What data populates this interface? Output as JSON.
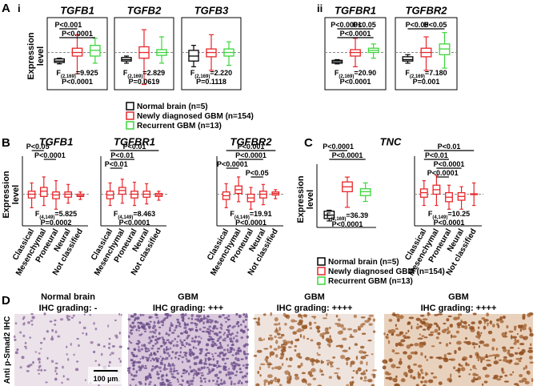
{
  "panels": {
    "A": "A",
    "i": "i",
    "ii": "ii",
    "B": "B",
    "C": "C",
    "D": "D"
  },
  "legends": [
    {
      "names": [
        "Normal brain (n=5)",
        "Newly diagnosed GBM (n=154)",
        "Recurrent GBM (n=13)"
      ],
      "colors": [
        "#000000",
        "#e8262a",
        "#3cd63c"
      ]
    },
    {
      "names": [
        "Normal brain (n=5)",
        "Newly diagnosed GBM (n=154)",
        "Recurrent GBM (n=13)"
      ],
      "colors": [
        "#000000",
        "#e8262a",
        "#3cd63c"
      ]
    }
  ],
  "chart_data": [
    {
      "type": "box",
      "title": "TGFB1",
      "ylabel": "Expression level",
      "ylim": [
        -5,
        4
      ],
      "zero_line": true,
      "legend": 0,
      "boxes": [
        {
          "min": -1.6,
          "q1": -1.4,
          "median": -1.2,
          "q3": -0.9,
          "max": -0.8
        },
        {
          "min": -3,
          "q1": -0.5,
          "median": 0,
          "q3": 0.6,
          "max": 2.5
        },
        {
          "min": -1.5,
          "q1": -0.5,
          "median": 0.3,
          "q3": 1.0,
          "max": 2.0
        }
      ],
      "comparisons": [
        {
          "label": "P<0.001",
          "pair": [
            0,
            1
          ],
          "level": 0
        },
        {
          "label": "P<0.0001",
          "pair": [
            0,
            2
          ],
          "level": 1
        }
      ],
      "stat": {
        "name": "F",
        "df": "(2,169)",
        "value": "=9.925",
        "p": "P<0.0001"
      }
    },
    {
      "type": "box",
      "title": "TGFB2",
      "ylim": [
        -5,
        4
      ],
      "zero_line": true,
      "legend": 0,
      "boxes": [
        {
          "min": -1.5,
          "q1": -1.2,
          "median": -1,
          "q3": -0.7,
          "max": -0.5
        },
        {
          "min": -4.5,
          "q1": -0.8,
          "median": 0,
          "q3": 0.8,
          "max": 3.2
        },
        {
          "min": -1.5,
          "q1": -0.4,
          "median": 0,
          "q3": 0.4,
          "max": 2.2
        }
      ],
      "comparisons": [],
      "stat": {
        "name": "F",
        "df": "(2,169)",
        "value": "=2.829",
        "p": "P=0.0619"
      }
    },
    {
      "type": "box",
      "title": "TGFB3",
      "ylim": [
        -5,
        4
      ],
      "zero_line": true,
      "legend": 0,
      "boxes": [
        {
          "min": -2,
          "q1": -1.2,
          "median": -0.5,
          "q3": 0.3,
          "max": 1.0
        },
        {
          "min": -2.5,
          "q1": -0.6,
          "median": 0,
          "q3": 0.5,
          "max": 2.5
        },
        {
          "min": -1.8,
          "q1": -0.5,
          "median": 0,
          "q3": 0.5,
          "max": 1.5
        }
      ],
      "comparisons": [],
      "stat": {
        "name": "F",
        "df": "(2,169)",
        "value": "=2.220",
        "p": "P=0.1118"
      }
    },
    {
      "type": "box",
      "title": "TGFBR1",
      "ylim": [
        -5,
        4
      ],
      "zero_line": true,
      "legend": 0,
      "boxes": [
        {
          "min": -1.6,
          "q1": -1.5,
          "median": -1.3,
          "q3": -1.1,
          "max": -1.0
        },
        {
          "min": -2,
          "q1": -0.5,
          "median": 0,
          "q3": 0.4,
          "max": 2
        },
        {
          "min": -0.8,
          "q1": 0,
          "median": 0.3,
          "q3": 0.6,
          "max": 1.2
        }
      ],
      "comparisons": [
        {
          "label": "P<0.0001",
          "pair": [
            0,
            1
          ],
          "level": 0
        },
        {
          "label": "P<0.05",
          "pair": [
            1,
            2
          ],
          "level": 0
        },
        {
          "label": "P<0.0001",
          "pair": [
            0,
            2
          ],
          "level": 1
        }
      ],
      "stat": {
        "name": "F",
        "df": "(2,169)",
        "value": "=20.90",
        "p": "P<0.0001"
      }
    },
    {
      "type": "box",
      "title": "TGFBR2",
      "ylim": [
        -5,
        4
      ],
      "zero_line": true,
      "legend": 0,
      "boxes": [
        {
          "min": -1.5,
          "q1": -1.2,
          "median": -1,
          "q3": -0.6,
          "max": -0.3
        },
        {
          "min": -2.5,
          "q1": -0.6,
          "median": 0,
          "q3": 0.6,
          "max": 2.2
        },
        {
          "min": -2.2,
          "q1": -0.3,
          "median": 0.5,
          "q3": 1.2,
          "max": 2.8
        }
      ],
      "comparisons": [
        {
          "label": "P<0.05",
          "pair": [
            0,
            1
          ],
          "level": 0
        },
        {
          "label": "P<0.05",
          "pair": [
            1,
            2
          ],
          "level": 0
        }
      ],
      "stat": {
        "name": "F",
        "df": "(2,169)",
        "value": "=7.180",
        "p": "P=0.001"
      }
    },
    {
      "type": "box",
      "title": "TGFB1",
      "ylabel": "Expression level",
      "ylim": [
        -4,
        4
      ],
      "zero_line": true,
      "color": "#e8262a",
      "categories": [
        "Classical",
        "Mesenchymal",
        "Proneural",
        "Neural",
        "Not classified"
      ],
      "boxes": [
        {
          "min": -1.8,
          "q1": -0.5,
          "median": 0,
          "q3": 0.4,
          "max": 1.5
        },
        {
          "min": -1.5,
          "q1": -0.3,
          "median": 0.4,
          "q3": 0.9,
          "max": 2.3
        },
        {
          "min": -2,
          "q1": -0.6,
          "median": -0.1,
          "q3": 0.3,
          "max": 1.8
        },
        {
          "min": -1.2,
          "q1": -0.4,
          "median": 0,
          "q3": 0.3,
          "max": 1.3
        },
        {
          "min": -0.7,
          "q1": -0.3,
          "median": -0.2,
          "q3": 0,
          "max": 0.3
        }
      ],
      "comparisons": [
        {
          "label": "P<0.05",
          "pair": [
            0,
            1
          ],
          "level": 0
        },
        {
          "label": "P<0.0001",
          "pair": [
            1,
            2
          ],
          "level": 1
        }
      ],
      "stat": {
        "name": "F",
        "df": "(4,149)",
        "value": "=5.825",
        "p": "P=0.0002"
      }
    },
    {
      "type": "box",
      "title": "TGFBR1",
      "ylim": [
        -4,
        4
      ],
      "zero_line": true,
      "color": "#e8262a",
      "categories": [
        "Classical",
        "Mesenchymal",
        "Proneural",
        "Neural",
        "Not classified"
      ],
      "boxes": [
        {
          "min": -1.5,
          "q1": -0.6,
          "median": -0.1,
          "q3": 0.4,
          "max": 1.5
        },
        {
          "min": -1.2,
          "q1": 0,
          "median": 0.5,
          "q3": 0.9,
          "max": 2.0
        },
        {
          "min": -1.5,
          "q1": -0.5,
          "median": 0,
          "q3": 0.4,
          "max": 1.6
        },
        {
          "min": -1.3,
          "q1": -0.4,
          "median": 0,
          "q3": 0.4,
          "max": 1.4
        },
        {
          "min": -0.8,
          "q1": -0.3,
          "median": -0.1,
          "q3": 0.1,
          "max": 0.4
        }
      ],
      "comparisons": [
        {
          "label": "P<0.01",
          "pair": [
            0,
            4
          ],
          "level": 0
        },
        {
          "label": "P<0.01",
          "pair": [
            0,
            2
          ],
          "level": 1
        },
        {
          "label": "P<0.01",
          "pair": [
            0,
            1
          ],
          "level": 2
        }
      ],
      "stat": {
        "name": "F",
        "df": "(4,149)",
        "value": "=8.463",
        "p": "P<0.0001"
      }
    },
    {
      "type": "box",
      "title": "TGFBR2",
      "ylim": [
        -4,
        4
      ],
      "zero_line": true,
      "color": "#e8262a",
      "categories": [
        "Classical",
        "Mesenchymal",
        "Proneural",
        "Neural",
        "Not classified"
      ],
      "boxes": [
        {
          "min": -1.8,
          "q1": -0.7,
          "median": -0.2,
          "q3": 0.3,
          "max": 1.4
        },
        {
          "min": -1.0,
          "q1": 0.1,
          "median": 0.6,
          "q3": 1.1,
          "max": 2.3
        },
        {
          "min": -2.0,
          "q1": -1.0,
          "median": -0.5,
          "q3": 0,
          "max": 0.9
        },
        {
          "min": -1.4,
          "q1": -0.5,
          "median": 0,
          "q3": 0.4,
          "max": 1.3
        },
        {
          "min": -0.6,
          "q1": -0.1,
          "median": 0.1,
          "q3": 0.3,
          "max": 0.6
        }
      ],
      "comparisons": [
        {
          "label": "P<0.001",
          "pair": [
            0,
            4
          ],
          "level": 0
        },
        {
          "label": "P<0.0001",
          "pair": [
            1,
            3
          ],
          "level": 1
        },
        {
          "label": "P<0.0001",
          "pair": [
            0,
            1
          ],
          "level": 2
        },
        {
          "label": "P<0.05",
          "pair": [
            2,
            3
          ],
          "level": 3
        }
      ],
      "stat": {
        "name": "F",
        "df": "(4,149)",
        "value": "=19.91",
        "p": "P<0.0001"
      }
    },
    {
      "type": "box",
      "ylabel": "Expression level",
      "ylim": [
        -7,
        4
      ],
      "zero_line": false,
      "legend": 1,
      "boxes": [
        {
          "min": -6,
          "q1": -5.5,
          "median": -4.8,
          "q3": -4,
          "max": -3.8
        },
        {
          "min": -3.2,
          "q1": 0,
          "median": 1,
          "q3": 2,
          "max": 3
        },
        {
          "min": -2,
          "q1": -0.8,
          "median": 0,
          "q3": 0.6,
          "max": 1.8
        }
      ],
      "comparisons": [
        {
          "label": "P<0.0001",
          "pair": [
            0,
            1
          ],
          "level": 0
        },
        {
          "label": "P<0.0001",
          "pair": [
            0,
            2
          ],
          "level": 1
        }
      ],
      "stat": {
        "name": "F",
        "df": "(2,169)",
        "value": "=36.39",
        "p": "P<0.0001"
      }
    },
    {
      "type": "box",
      "title": "TNC",
      "ylim": [
        -4,
        4
      ],
      "zero_line": true,
      "color": "#e8262a",
      "categories": [
        "Classical",
        "Mesenchymal",
        "Proneural",
        "Neural",
        "Not classified"
      ],
      "boxes": [
        {
          "min": -1.5,
          "q1": -0.4,
          "median": 0.2,
          "q3": 0.7,
          "max": 1.8
        },
        {
          "min": -1.5,
          "q1": 0,
          "median": 0.6,
          "q3": 1.2,
          "max": 2.5
        },
        {
          "min": -2,
          "q1": -1,
          "median": -0.4,
          "q3": 0.2,
          "max": 1.2
        },
        {
          "min": -2,
          "q1": -0.8,
          "median": -0.3,
          "q3": 0.2,
          "max": 1.0
        },
        {
          "min": -1.5,
          "q1": -0.05,
          "median": 0,
          "q3": 0.05,
          "max": 1.5
        }
      ],
      "comparisons": [
        {
          "label": "P<0.01",
          "pair": [
            0,
            4
          ],
          "level": 0
        },
        {
          "label": "P<0.01",
          "pair": [
            0,
            2
          ],
          "level": 1
        },
        {
          "label": "P<0.0001",
          "pair": [
            1,
            3
          ],
          "level": 2
        },
        {
          "label": "P<0.0001",
          "pair": [
            1,
            2
          ],
          "level": 3
        }
      ],
      "stat": {
        "name": "F",
        "df": "(4,149)",
        "value": "=10.25",
        "p": "P<0.0001"
      }
    }
  ],
  "ihc": {
    "ylabel": "Anti p-Smad2 IHC",
    "scale_bar": "100 µm",
    "images": [
      {
        "title": "Normal brain",
        "grading": "IHC grading: -"
      },
      {
        "title": "GBM",
        "grading": "IHC grading: +++"
      },
      {
        "title": "GBM",
        "grading": "IHC grading: ++++"
      },
      {
        "title": "GBM",
        "grading": "IHC grading: ++++"
      }
    ]
  }
}
